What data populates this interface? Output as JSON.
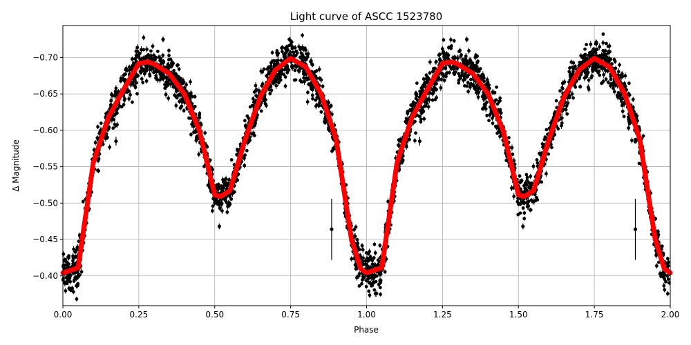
{
  "chart_data": {
    "type": "scatter",
    "title": "Light curve of ASCC 1523780",
    "xlabel": "Phase",
    "ylabel": "Δ Magnitude",
    "xlim": [
      0,
      2
    ],
    "ylim": [
      -0.359,
      -0.744
    ],
    "y_inverted": true,
    "grid": true,
    "xticks": [
      "0.00",
      "0.25",
      "0.50",
      "0.75",
      "1.00",
      "1.25",
      "1.50",
      "1.75",
      "2.00"
    ],
    "xtick_values": [
      0,
      0.25,
      0.5,
      0.75,
      1,
      1.25,
      1.5,
      1.75,
      2
    ],
    "yticks": [
      "−0.70",
      "−0.65",
      "−0.60",
      "−0.55",
      "−0.50",
      "−0.45",
      "−0.40"
    ],
    "ytick_values": [
      -0.7,
      -0.65,
      -0.6,
      -0.55,
      -0.5,
      -0.45,
      -0.4
    ],
    "series": [
      {
        "kind": "model-line",
        "color": "#ff0000",
        "phase_period": 1,
        "x": [
          0,
          0.05,
          0.1,
          0.15,
          0.2,
          0.25,
          0.28,
          0.3,
          0.35,
          0.4,
          0.45,
          0.5,
          0.52,
          0.55,
          0.6,
          0.65,
          0.7,
          0.75,
          0.8,
          0.85,
          0.9,
          0.95,
          0.98,
          1.0
        ],
        "y": [
          -0.404,
          -0.411,
          -0.555,
          -0.618,
          -0.656,
          -0.692,
          -0.694,
          -0.691,
          -0.678,
          -0.65,
          -0.599,
          -0.511,
          -0.509,
          -0.517,
          -0.587,
          -0.646,
          -0.683,
          -0.699,
          -0.687,
          -0.65,
          -0.587,
          -0.451,
          -0.41,
          -0.404
        ]
      },
      {
        "kind": "observations-with-errorbars",
        "color": "#000000",
        "scatter_about_model": 0.013,
        "outliers": [
          {
            "x": 0.885,
            "y": -0.464,
            "err": 0.042
          },
          {
            "x": 1.885,
            "y": -0.464,
            "err": 0.042
          },
          {
            "x": 0.33,
            "y": -0.725,
            "err": 0.004
          },
          {
            "x": 1.33,
            "y": -0.725,
            "err": 0.004
          },
          {
            "x": 0.175,
            "y": -0.585,
            "err": 0.006
          },
          {
            "x": 1.175,
            "y": -0.585,
            "err": 0.006
          },
          {
            "x": 0.515,
            "y": -0.468,
            "err": 0.004
          },
          {
            "x": 1.515,
            "y": -0.468,
            "err": 0.004
          }
        ]
      }
    ]
  }
}
